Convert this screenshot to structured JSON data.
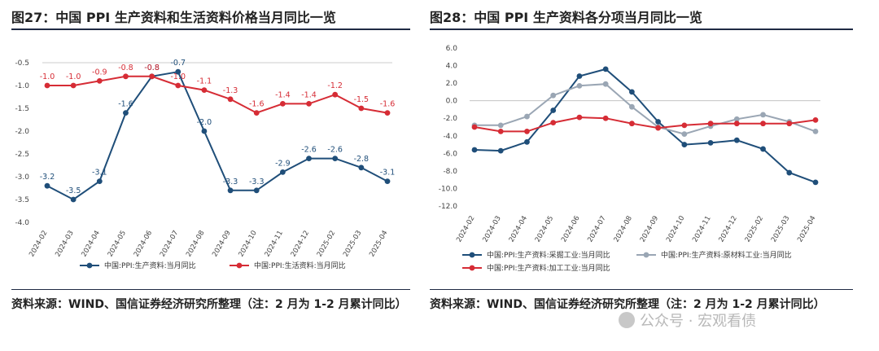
{
  "left": {
    "title": "图27：中国 PPI 生产资料和生活资料价格当月同比一览",
    "source": "资料来源：WIND、国信证券经济研究所整理（注：2 月为 1-2 月累计同比）",
    "chart_data": {
      "type": "line",
      "categories": [
        "2024-02",
        "2024-03",
        "2024-04",
        "2024-05",
        "2024-06",
        "2024-07",
        "2024-08",
        "2024-09",
        "2024-10",
        "2024-11",
        "2024-12",
        "2025-02",
        "2025-03",
        "2025-04"
      ],
      "ylim": [
        -4.0,
        -0.5
      ],
      "yticks": [
        -4.0,
        -3.5,
        -3.0,
        -2.5,
        -2.0,
        -1.5,
        -1.0,
        -0.5
      ],
      "series": [
        {
          "name": "中国:PPI:生产资料:当月同比",
          "color": "#1f4e79",
          "values": [
            -3.2,
            -3.5,
            -3.1,
            -1.6,
            -0.8,
            -0.7,
            -2.0,
            -3.3,
            -3.3,
            -2.9,
            -2.6,
            -2.6,
            -2.8,
            -3.1
          ],
          "labels": [
            "-3.2",
            "-3.5",
            "-3.1",
            "-1.6",
            "-0.8",
            "-0.7",
            "-2.0",
            "-3.3",
            "-3.3",
            "-2.9",
            "-2.6",
            "-2.6",
            "-2.8",
            "-3.1"
          ]
        },
        {
          "name": "中国:PPI:生活资料:当月同比",
          "color": "#d62c35",
          "values": [
            -1.0,
            -1.0,
            -0.9,
            -0.8,
            -0.8,
            -1.0,
            -1.1,
            -1.3,
            -1.6,
            -1.4,
            -1.4,
            -1.2,
            -1.5,
            -1.6
          ],
          "labels": [
            "-1.0",
            "-1.0",
            "-0.9",
            "-0.8",
            "-0.8",
            "-1.0",
            "-1.1",
            "-1.3",
            "-1.6",
            "-1.4",
            "-1.4",
            "-1.2",
            "-1.5",
            "-1.6"
          ]
        }
      ],
      "grid": false,
      "legend": "bottom"
    }
  },
  "right": {
    "title": "图28：中国 PPI 生产资料各分项当月同比一览",
    "source": "资料来源：WIND、国信证券经济研究所整理（注：2 月为 1-2 月累计同比）",
    "chart_data": {
      "type": "line",
      "categories": [
        "2024-02",
        "2024-03",
        "2024-04",
        "2024-05",
        "2024-06",
        "2024-07",
        "2024-08",
        "2024-09",
        "2024-10",
        "2024-11",
        "2024-12",
        "2025-02",
        "2025-03",
        "2025-04"
      ],
      "ylim": [
        -12.0,
        6.0
      ],
      "yticks": [
        -12.0,
        -10.0,
        -8.0,
        -6.0,
        -4.0,
        -2.0,
        0.0,
        2.0,
        4.0,
        6.0
      ],
      "series": [
        {
          "name": "中国:PPI:生产资料:采掘工业:当月同比",
          "color": "#1f4e79",
          "values": [
            -5.6,
            -5.7,
            -4.7,
            -1.1,
            2.8,
            3.6,
            1.0,
            -2.4,
            -5.0,
            -4.8,
            -4.5,
            -5.5,
            -8.2,
            -9.3
          ]
        },
        {
          "name": "中国:PPI:生产资料:原材料工业:当月同比",
          "color": "#9aa6b4",
          "values": [
            -2.8,
            -2.8,
            -1.8,
            0.6,
            1.7,
            1.9,
            -0.7,
            -3.0,
            -3.8,
            -2.9,
            -2.1,
            -1.6,
            -2.4,
            -3.5
          ]
        },
        {
          "name": "中国:PPI:生产资料:加工工业:当月同比",
          "color": "#d62c35",
          "values": [
            -3.0,
            -3.5,
            -3.5,
            -2.5,
            -1.9,
            -2.0,
            -2.6,
            -3.1,
            -2.8,
            -2.6,
            -2.6,
            -2.6,
            -2.6,
            -2.2
          ]
        }
      ],
      "grid": false,
      "legend": "bottom"
    }
  },
  "watermark": "公众号 · 宏观看债"
}
